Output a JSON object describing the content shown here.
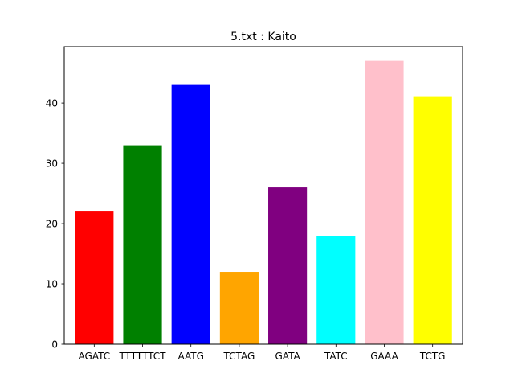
{
  "chart_data": {
    "type": "bar",
    "title": "5.txt : Kaito",
    "xlabel": "",
    "ylabel": "",
    "categories": [
      "AGATC",
      "TTTTTTCT",
      "AATG",
      "TCTAG",
      "GATA",
      "TATC",
      "GAAA",
      "TCTG"
    ],
    "values": [
      22,
      33,
      43,
      12,
      26,
      18,
      47,
      41
    ],
    "colors": [
      "#ff0000",
      "#008000",
      "#0000ff",
      "#ffa500",
      "#800080",
      "#00ffff",
      "#ffc0cb",
      "#ffff00"
    ],
    "ylim": [
      0,
      49.35
    ],
    "yticks": [
      0,
      10,
      20,
      30,
      40
    ],
    "grid": false,
    "legend": "none"
  }
}
